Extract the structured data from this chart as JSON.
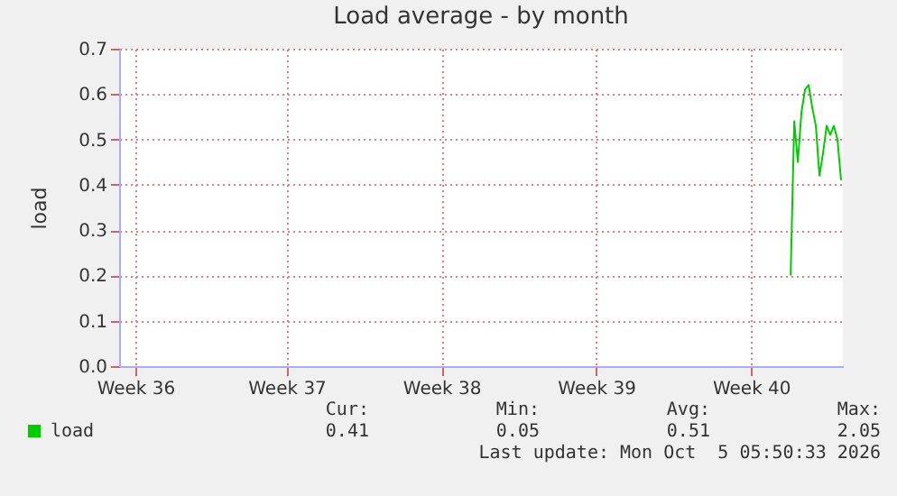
{
  "chart_data": {
    "type": "line",
    "title": "Load average - by month",
    "ylabel": "load",
    "categories": [
      null,
      null,
      null,
      null,
      "Week 36",
      null,
      null,
      null,
      null,
      null,
      null,
      null,
      null,
      null,
      null,
      null,
      null,
      null,
      null,
      null,
      null,
      null,
      null,
      null,
      null,
      null,
      null,
      null,
      null,
      null,
      null,
      null,
      null,
      null,
      null,
      null,
      null,
      null,
      null,
      null,
      null,
      null,
      null,
      null,
      null,
      null,
      "Week 37",
      null,
      null,
      null,
      null,
      null,
      null,
      null,
      null,
      null,
      null,
      null,
      null,
      null,
      null,
      null,
      null,
      null,
      null,
      null,
      null,
      null,
      null,
      null,
      null,
      null,
      null,
      null,
      null,
      null,
      null,
      null,
      null,
      null,
      null,
      null,
      null,
      null,
      null,
      null,
      null,
      null,
      null,
      "Week 38",
      null,
      null,
      null,
      null,
      null,
      null,
      null,
      null,
      null,
      null,
      null,
      null,
      null,
      null,
      null,
      null,
      null,
      null,
      null,
      null,
      null,
      null,
      null,
      null,
      null,
      null,
      null,
      null,
      null,
      null,
      null,
      null,
      null,
      null,
      null,
      null,
      null,
      null,
      null,
      null,
      null,
      null,
      "Week 39",
      null,
      null,
      null,
      null,
      null,
      null,
      null,
      null,
      null,
      null,
      null,
      null,
      null,
      null,
      null,
      null,
      null,
      null,
      null,
      null,
      null,
      null,
      null,
      null,
      null,
      null,
      null,
      null,
      null,
      null,
      null,
      null,
      null,
      null,
      null,
      null,
      null,
      null,
      null,
      null,
      null,
      null,
      "Week 40",
      null,
      null,
      null,
      null,
      null,
      null,
      null,
      null,
      null,
      null,
      null,
      null,
      null,
      null,
      null,
      null,
      null,
      null,
      null,
      null,
      null,
      null,
      null,
      null,
      null
    ],
    "series": [
      {
        "name": "load",
        "color": "#00cc00",
        "values": [
          null,
          null,
          null,
          null,
          null,
          null,
          null,
          null,
          null,
          null,
          null,
          null,
          null,
          null,
          null,
          null,
          null,
          null,
          null,
          null,
          null,
          null,
          null,
          null,
          null,
          null,
          null,
          null,
          null,
          null,
          null,
          null,
          null,
          null,
          null,
          null,
          null,
          null,
          null,
          null,
          null,
          null,
          null,
          null,
          null,
          null,
          null,
          null,
          null,
          null,
          null,
          null,
          null,
          null,
          null,
          null,
          null,
          null,
          null,
          null,
          null,
          null,
          null,
          null,
          null,
          null,
          null,
          null,
          null,
          null,
          null,
          null,
          null,
          null,
          null,
          null,
          null,
          null,
          null,
          null,
          null,
          null,
          null,
          null,
          null,
          null,
          null,
          null,
          null,
          null,
          null,
          null,
          null,
          null,
          null,
          null,
          null,
          null,
          null,
          null,
          null,
          null,
          null,
          null,
          null,
          null,
          null,
          null,
          null,
          null,
          null,
          null,
          null,
          null,
          null,
          null,
          null,
          null,
          null,
          null,
          null,
          null,
          null,
          null,
          null,
          null,
          null,
          null,
          null,
          null,
          null,
          null,
          null,
          null,
          null,
          null,
          null,
          null,
          null,
          null,
          null,
          null,
          null,
          null,
          null,
          null,
          null,
          null,
          null,
          null,
          null,
          null,
          null,
          null,
          null,
          null,
          null,
          null,
          null,
          null,
          null,
          null,
          null,
          null,
          null,
          null,
          null,
          null,
          null,
          null,
          null,
          null,
          null,
          null,
          null,
          null,
          null,
          null,
          null,
          null,
          null,
          null,
          null,
          null,
          null,
          null,
          0.2,
          0.54,
          0.45,
          0.56,
          0.61,
          0.62,
          0.57,
          0.53,
          0.42,
          0.47,
          0.53,
          0.51,
          0.53,
          0.5,
          0.41
        ]
      }
    ],
    "ylim": [
      0,
      0.7
    ],
    "yticks": [
      {
        "value": 0,
        "label": "0.0"
      },
      {
        "value": 0.1,
        "label": "0.1"
      },
      {
        "value": 0.2,
        "label": "0.2"
      },
      {
        "value": 0.3,
        "label": "0.3"
      },
      {
        "value": 0.4,
        "label": "0.4"
      },
      {
        "value": 0.5,
        "label": "0.5"
      },
      {
        "value": 0.6,
        "label": "0.6"
      },
      {
        "value": 0.7,
        "label": "0.7"
      }
    ],
    "grid": true,
    "legend": "bottom left",
    "annotations": [
      "Cur:",
      "Min:",
      "Avg:",
      "Max:",
      "0.41",
      "0.05",
      "0.51",
      "2.05",
      "Last update: Mon Oct  5 05:50:33 2026"
    ]
  }
}
